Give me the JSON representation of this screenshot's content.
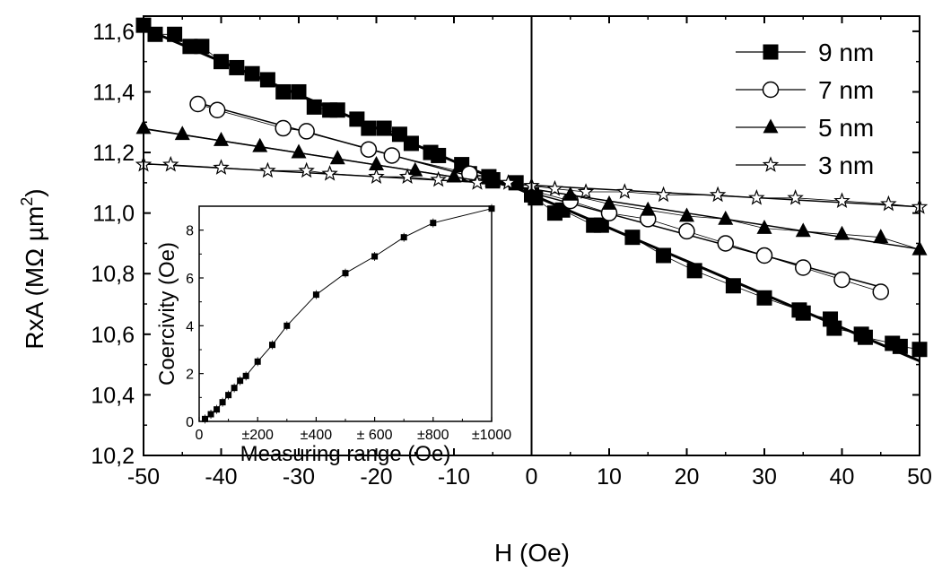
{
  "chart_data": [
    {
      "type": "scatter",
      "xlabel": "H (Oe)",
      "ylabel_main": "RxA (MΩ µm",
      "ylabel_sup": "2",
      "ylabel_tail": ")",
      "xlim": [
        -50,
        50
      ],
      "ylim": [
        10.2,
        11.65
      ],
      "x_ticks": [
        -50,
        -40,
        -30,
        -20,
        -10,
        0,
        10,
        20,
        30,
        40,
        50
      ],
      "y_ticks": [
        10.2,
        10.4,
        10.6,
        10.8,
        11.0,
        11.2,
        11.4,
        11.6
      ],
      "x_tick_labels": [
        "-50",
        "-40",
        "-30",
        "-20",
        "-10",
        "0",
        "10",
        "20",
        "30",
        "40",
        "50"
      ],
      "y_tick_labels": [
        "10,2",
        "10,4",
        "10,6",
        "10,8",
        "11,0",
        "11,2",
        "11,4",
        "11,6"
      ],
      "vertical_line_at": 0,
      "legend_position": "top-right",
      "series": [
        {
          "name": "9 nm",
          "marker": "filled-square",
          "x": [
            -50,
            -48.5,
            -46,
            -44,
            -42.5,
            -40,
            -38,
            -36,
            -34,
            -32,
            -30,
            -28,
            -26,
            -25,
            -22.5,
            -21,
            -19,
            -17,
            -15.5,
            -13,
            -12,
            -9,
            -8,
            -5.5,
            -5,
            -2,
            0,
            0.5,
            3,
            4,
            8,
            9,
            13,
            17,
            21,
            26,
            30,
            34.5,
            35,
            38.5,
            39,
            42.5,
            43,
            46.5,
            47.5,
            50
          ],
          "y": [
            11.62,
            11.59,
            11.59,
            11.55,
            11.55,
            11.5,
            11.48,
            11.46,
            11.44,
            11.4,
            11.4,
            11.35,
            11.34,
            11.34,
            11.31,
            11.28,
            11.28,
            11.26,
            11.23,
            11.2,
            11.19,
            11.16,
            11.13,
            11.12,
            11.11,
            11.1,
            11.06,
            11.05,
            11.0,
            11.01,
            10.96,
            10.96,
            10.92,
            10.86,
            10.81,
            10.76,
            10.72,
            10.68,
            10.67,
            10.65,
            10.62,
            10.6,
            10.59,
            10.57,
            10.56,
            10.55
          ]
        },
        {
          "name": "7 nm",
          "marker": "open-circle",
          "x": [
            -43,
            -40.5,
            -32,
            -29,
            -21,
            -18,
            -8,
            5,
            10,
            15,
            20,
            25,
            30,
            35,
            40,
            45
          ],
          "y": [
            11.36,
            11.34,
            11.28,
            11.27,
            11.21,
            11.19,
            11.13,
            11.04,
            11.0,
            10.98,
            10.94,
            10.9,
            10.86,
            10.82,
            10.78,
            10.74
          ]
        },
        {
          "name": "5 nm",
          "marker": "filled-triangle",
          "x": [
            -50,
            -45,
            -40,
            -35,
            -30,
            -25,
            -20,
            -15,
            -10,
            -5,
            0,
            5,
            10,
            15,
            20,
            25,
            30,
            35,
            40,
            45,
            50
          ],
          "y": [
            11.28,
            11.26,
            11.24,
            11.22,
            11.2,
            11.18,
            11.16,
            11.14,
            11.12,
            11.1,
            11.08,
            11.06,
            11.03,
            11.01,
            10.99,
            10.98,
            10.95,
            10.94,
            10.93,
            10.92,
            10.88
          ]
        },
        {
          "name": "3 nm",
          "marker": "open-star",
          "x": [
            -50,
            -46.5,
            -40,
            -34,
            -29,
            -26,
            -20,
            -16,
            -12,
            -7,
            -3,
            0,
            3,
            7,
            12,
            17,
            24,
            29,
            34,
            40,
            46,
            50
          ],
          "y": [
            11.16,
            11.16,
            11.15,
            11.14,
            11.14,
            11.13,
            11.12,
            11.12,
            11.11,
            11.1,
            11.1,
            11.09,
            11.08,
            11.07,
            11.07,
            11.06,
            11.06,
            11.05,
            11.05,
            11.04,
            11.03,
            11.02
          ]
        }
      ]
    },
    {
      "type": "scatter",
      "xlabel": "Measuring range (Oe)",
      "ylabel": "Coercivity (Oe)",
      "xlim": [
        0,
        1000
      ],
      "ylim": [
        0,
        9
      ],
      "x_ticks": [
        0,
        200,
        400,
        600,
        800,
        1000
      ],
      "x_tick_labels": [
        "0",
        "±200",
        "±400",
        "± 600",
        "±800",
        "±1000"
      ],
      "y_ticks": [
        0,
        2,
        4,
        6,
        8
      ],
      "y_tick_labels": [
        "0",
        "2",
        "4",
        "6",
        "8"
      ],
      "series": [
        {
          "marker": "filled-square",
          "x": [
            20,
            40,
            60,
            80,
            100,
            120,
            140,
            160,
            200,
            250,
            300,
            400,
            500,
            600,
            700,
            800,
            1000
          ],
          "y": [
            0.1,
            0.3,
            0.5,
            0.8,
            1.1,
            1.4,
            1.7,
            1.9,
            2.5,
            3.2,
            4.0,
            5.3,
            6.2,
            6.9,
            7.7,
            8.3,
            8.9
          ]
        }
      ]
    }
  ]
}
